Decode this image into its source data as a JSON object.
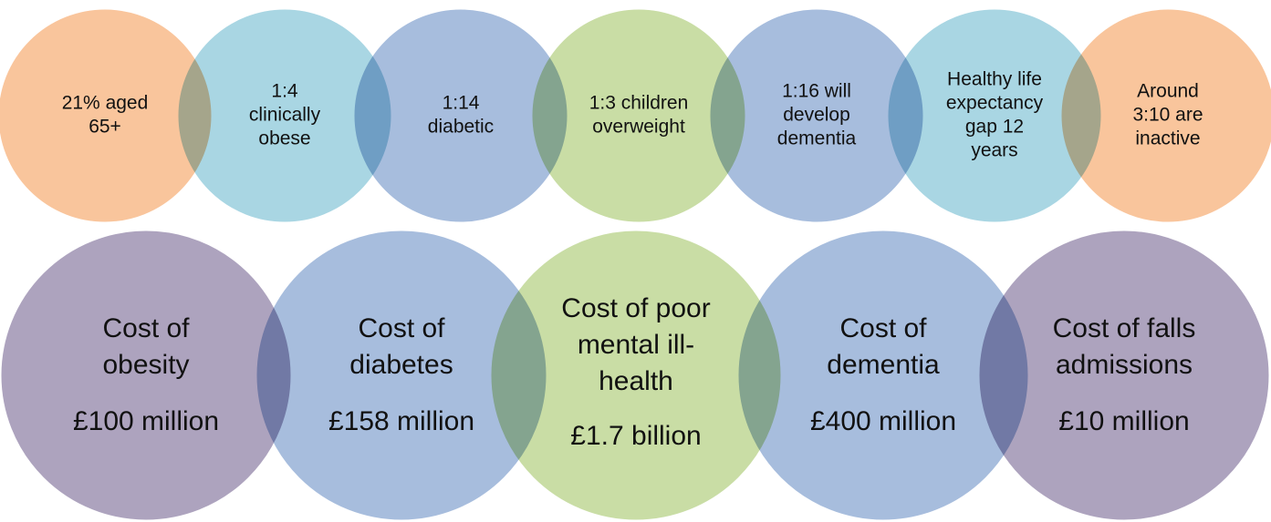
{
  "top_row": [
    {
      "lines": [
        "21% aged",
        "65+"
      ],
      "color": "#f9c59c"
    },
    {
      "lines": [
        "1:4",
        "clinically",
        "obese"
      ],
      "color": "#a9d6e3"
    },
    {
      "lines": [
        "1:14",
        "diabetic"
      ],
      "color": "#a7bddd"
    },
    {
      "lines": [
        "1:3 children",
        "overweight"
      ],
      "color": "#c9dda5"
    },
    {
      "lines": [
        "1:16 will",
        "develop",
        "dementia"
      ],
      "color": "#a7bddd"
    },
    {
      "lines": [
        "Healthy life",
        "expectancy",
        "gap 12",
        "years"
      ],
      "color": "#a9d6e3"
    },
    {
      "lines": [
        "Around",
        "3:10 are",
        "inactive"
      ],
      "color": "#f9c59c"
    }
  ],
  "bottom_row": [
    {
      "lines": [
        "Cost of",
        "obesity"
      ],
      "amount": "£100 million",
      "color": "#ada3be"
    },
    {
      "lines": [
        "Cost of",
        "diabetes"
      ],
      "amount": "£158 million",
      "color": "#a7bddd"
    },
    {
      "lines": [
        "Cost of poor",
        "mental ill-",
        "health"
      ],
      "amount": "£1.7 billion",
      "color": "#c9dda5"
    },
    {
      "lines": [
        "Cost of",
        "dementia"
      ],
      "amount": "£400 million",
      "color": "#a7bddd"
    },
    {
      "lines": [
        "Cost of falls",
        "admissions"
      ],
      "amount": "£10 million",
      "color": "#ada3be"
    }
  ]
}
